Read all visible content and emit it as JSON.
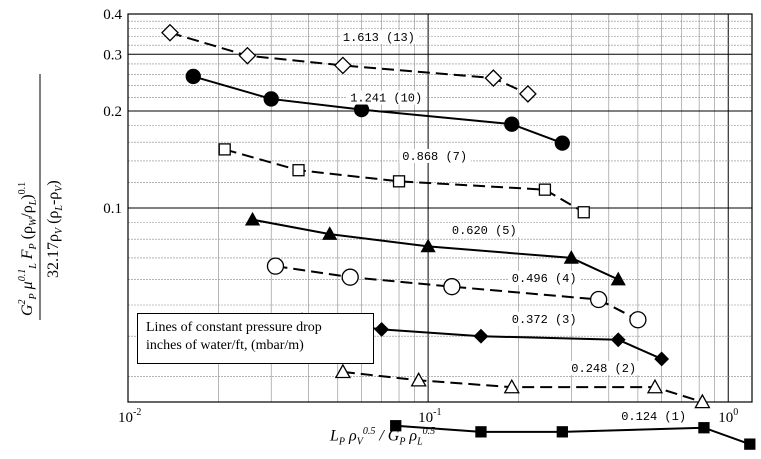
{
  "chart_data": {
    "type": "line",
    "xscale": "log",
    "yscale": "log",
    "xlim": [
      0.01,
      1.2
    ],
    "ylim": [
      0.025,
      0.4
    ],
    "x_tick_labels": [
      {
        "value": 0.01,
        "base": "10",
        "exp": "-2"
      },
      {
        "value": 0.1,
        "base": "10",
        "exp": "-1"
      },
      {
        "value": 1,
        "base": "10",
        "exp": "0"
      }
    ],
    "y_tick_labels": [
      {
        "value": 0.4,
        "text": "0.4"
      },
      {
        "value": 0.3,
        "text": "0.3"
      },
      {
        "value": 0.2,
        "text": "0.2"
      },
      {
        "value": 0.1,
        "text": "0.1"
      }
    ],
    "xlabel": "L_P ρ_V^0.5 / G_P ρ_L^0.5",
    "ylabel": "G_P^2 μ_L^0.1 F_P (ρ_W/ρ_L)^0.1 / 32.17ρ_V (ρ_L-ρ_V)",
    "grid": true,
    "series": [
      {
        "name": "1.613 (13)",
        "marker": "diamond-open",
        "dash": true,
        "label_at": [
          0.052,
          0.33
        ],
        "x": [
          0.0138,
          0.025,
          0.052,
          0.165,
          0.215
        ],
        "y": [
          0.35,
          0.297,
          0.277,
          0.253,
          0.226
        ]
      },
      {
        "name": "1.241 (10)",
        "marker": "circle-filled",
        "dash": false,
        "label_at": [
          0.055,
          0.214
        ],
        "x": [
          0.0165,
          0.03,
          0.06,
          0.19,
          0.28
        ],
        "y": [
          0.256,
          0.218,
          0.202,
          0.182,
          0.159
        ]
      },
      {
        "name": "0.868 (7)",
        "marker": "square-open",
        "dash": true,
        "label_at": [
          0.082,
          0.141
        ],
        "x": [
          0.021,
          0.037,
          0.08,
          0.245,
          0.33
        ],
        "y": [
          0.152,
          0.131,
          0.121,
          0.114,
          0.097
        ]
      },
      {
        "name": "0.620 (5)",
        "marker": "triangle-filled",
        "dash": false,
        "label_at": [
          0.12,
          0.083
        ],
        "x": [
          0.026,
          0.047,
          0.1,
          0.3,
          0.43
        ],
        "y": [
          0.092,
          0.083,
          0.076,
          0.07,
          0.06
        ]
      },
      {
        "name": "0.496 (4)",
        "marker": "circle-open",
        "dash": true,
        "label_at": [
          0.19,
          0.059
        ],
        "x": [
          0.031,
          0.055,
          0.12,
          0.37,
          0.5
        ],
        "y": [
          0.066,
          0.061,
          0.057,
          0.052,
          0.045
        ]
      },
      {
        "name": "0.372 (3)",
        "marker": "diamond-filled",
        "dash": false,
        "label_at": [
          0.19,
          0.044
        ],
        "x": [
          0.038,
          0.07,
          0.15,
          0.43,
          0.6
        ],
        "y": [
          0.045,
          0.042,
          0.04,
          0.039,
          0.034
        ]
      },
      {
        "name": "0.248 (2)",
        "marker": "triangle-open",
        "dash": true,
        "label_at": [
          0.3,
          0.031
        ],
        "x": [
          0.052,
          0.093,
          0.19,
          0.57,
          0.82
        ],
        "y": [
          0.031,
          0.0292,
          0.0278,
          0.0278,
          0.025
        ]
      },
      {
        "name": "0.124 (1)",
        "marker": "square-filled",
        "dash": false,
        "label_at": [
          0.44,
          0.022
        ],
        "x": [
          0.078,
          0.15,
          0.28,
          0.83,
          1.18
        ],
        "y": [
          0.0211,
          0.0202,
          0.0202,
          0.0208,
          0.0185
        ]
      }
    ]
  },
  "note": {
    "line1": "Lines of constant pressure drop",
    "line2": "inches of water/ft, (mbar/m)"
  },
  "labels": {
    "ylabel_num": {
      "G": "G",
      "P": "P",
      "two": "2",
      "mu": "μ",
      "L": "L",
      "exp01": "0.1",
      "F": "F",
      "rho_ratio": "(ρ",
      "W": "W",
      "slash_rho": "/ρ",
      "close": ")"
    },
    "ylabel_den": "32.17ρ",
    "ylabel_den_V": "V",
    "ylabel_den_rest": "(ρ",
    "ylabel_den_L": "L",
    "ylabel_den_minus": "-ρ",
    "ylabel_den_V2": "V",
    "ylabel_den_close": ")"
  }
}
